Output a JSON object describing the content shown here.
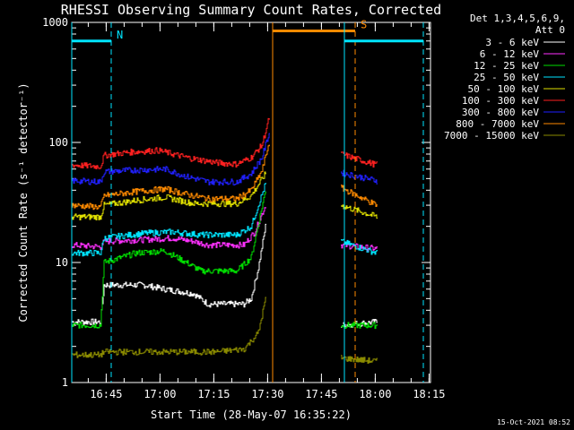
{
  "chart_data": {
    "type": "line",
    "title": "RHESSI Observing Summary Count Rates, Corrected",
    "xlabel": "Start Time (28-May-07 16:35:22)",
    "ylabel": "Corrected Count Rate (s⁻¹ detector⁻¹)",
    "yscale": "log",
    "ylim": [
      1,
      1000
    ],
    "xlim_minutes_after_start": [
      0,
      100
    ],
    "x_tick_labels": [
      "16:45",
      "17:00",
      "17:15",
      "17:30",
      "17:45",
      "18:00",
      "18:15"
    ],
    "x_tick_minutes": [
      9.6,
      24.6,
      39.6,
      54.6,
      69.6,
      84.6,
      99.6
    ],
    "y_tick_labels": [
      "1",
      "10",
      "100",
      "1000"
    ],
    "y_tick_values": [
      1,
      10,
      100,
      1000
    ],
    "legend_header": [
      "Det 1,3,4,5,6,9,",
      "Att 0"
    ],
    "legend_placement": "right",
    "series": [
      {
        "name": "3 - 6 keV",
        "color": "#ffffff",
        "segments": [
          [
            [
              0,
              3.2
            ],
            [
              8,
              3.2
            ],
            [
              9,
              6.5
            ],
            [
              20,
              6.5
            ],
            [
              26,
              6.0
            ],
            [
              34,
              5.5
            ],
            [
              38,
              4.5
            ],
            [
              48,
              4.5
            ],
            [
              50,
              5
            ],
            [
              52,
              9
            ],
            [
              54,
              20
            ]
          ],
          [
            [
              75,
              3
            ],
            [
              85,
              3.2
            ]
          ]
        ]
      },
      {
        "name": "6 - 12 keV",
        "color": "#ff30ff",
        "segments": [
          [
            [
              0,
              14
            ],
            [
              8,
              13.5
            ],
            [
              9,
              15
            ],
            [
              20,
              15.5
            ],
            [
              28,
              16
            ],
            [
              34,
              15
            ],
            [
              38,
              14
            ],
            [
              44,
              14
            ],
            [
              48,
              14
            ],
            [
              51,
              18
            ],
            [
              54,
              30
            ]
          ],
          [
            [
              75,
              14
            ],
            [
              85,
              13
            ]
          ]
        ]
      },
      {
        "name": "12 - 25 keV",
        "color": "#00dd00",
        "segments": [
          [
            [
              0,
              3
            ],
            [
              8,
              3
            ],
            [
              9,
              10
            ],
            [
              18,
              12
            ],
            [
              26,
              12.5
            ],
            [
              32,
              10
            ],
            [
              36,
              8.5
            ],
            [
              46,
              8.5
            ],
            [
              50,
              11
            ],
            [
              54,
              40
            ]
          ],
          [
            [
              75,
              3
            ],
            [
              85,
              3
            ]
          ]
        ]
      },
      {
        "name": "25 - 50 keV",
        "color": "#00e5ff",
        "segments": [
          [
            [
              0,
              12
            ],
            [
              8,
              12
            ],
            [
              9,
              16
            ],
            [
              20,
              17.5
            ],
            [
              28,
              18
            ],
            [
              36,
              17
            ],
            [
              46,
              17
            ],
            [
              50,
              20
            ],
            [
              54,
              45
            ]
          ],
          [
            [
              75,
              15
            ],
            [
              85,
              12
            ]
          ]
        ]
      },
      {
        "name": "50 - 100 keV",
        "color": "#e0e000",
        "segments": [
          [
            [
              0,
              24
            ],
            [
              8,
              24
            ],
            [
              9,
              30
            ],
            [
              18,
              33
            ],
            [
              26,
              35
            ],
            [
              34,
              31
            ],
            [
              46,
              31
            ],
            [
              50,
              36
            ],
            [
              54,
              55
            ]
          ],
          [
            [
              75,
              30
            ],
            [
              85,
              24
            ]
          ]
        ]
      },
      {
        "name": "100 - 300 keV",
        "color": "#ff2020",
        "segments": [
          [
            [
              0,
              65
            ],
            [
              8,
              63
            ],
            [
              9,
              78
            ],
            [
              16,
              83
            ],
            [
              24,
              86
            ],
            [
              32,
              75
            ],
            [
              40,
              68
            ],
            [
              46,
              66
            ],
            [
              50,
              75
            ],
            [
              53,
              95
            ],
            [
              55,
              160
            ]
          ],
          [
            [
              75,
              80
            ],
            [
              80,
              72
            ],
            [
              85,
              65
            ]
          ]
        ]
      },
      {
        "name": "300 - 800 keV",
        "color": "#2020ff",
        "segments": [
          [
            [
              0,
              48
            ],
            [
              8,
              47
            ],
            [
              9,
              57
            ],
            [
              18,
              59
            ],
            [
              26,
              60
            ],
            [
              32,
              52
            ],
            [
              38,
              47
            ],
            [
              46,
              47
            ],
            [
              50,
              55
            ],
            [
              53,
              75
            ],
            [
              55,
              120
            ]
          ],
          [
            [
              75,
              56
            ],
            [
              85,
              48
            ]
          ]
        ]
      },
      {
        "name": "800 - 7000 keV",
        "color": "#ff8a00",
        "segments": [
          [
            [
              0,
              30
            ],
            [
              8,
              29
            ],
            [
              9,
              36
            ],
            [
              18,
              39
            ],
            [
              26,
              41
            ],
            [
              32,
              37
            ],
            [
              38,
              34
            ],
            [
              46,
              34
            ],
            [
              50,
              40
            ],
            [
              53,
              58
            ],
            [
              55,
              100
            ]
          ],
          [
            [
              75,
              42
            ],
            [
              85,
              30
            ]
          ]
        ]
      },
      {
        "name": "7000 - 15000 keV",
        "color": "#8a8a00",
        "segments": [
          [
            [
              0,
              1.7
            ],
            [
              8,
              1.7
            ],
            [
              9,
              1.8
            ],
            [
              40,
              1.8
            ],
            [
              48,
              1.9
            ],
            [
              52,
              2.6
            ],
            [
              54,
              5
            ]
          ],
          [
            [
              75,
              1.6
            ],
            [
              85,
              1.5
            ]
          ]
        ]
      }
    ],
    "annotations": [
      {
        "label": "N",
        "kind": "night",
        "color": "#00e5ff",
        "start": 0,
        "end": 11,
        "level": 700
      },
      {
        "label": "S",
        "kind": "saa",
        "color": "#ff8a00",
        "start": 56,
        "end": 79,
        "level": 850
      },
      {
        "label": "",
        "kind": "night",
        "color": "#00e5ff",
        "start": 76,
        "end": 98,
        "level": 700
      }
    ],
    "gaps_minutes": [
      [
        56,
        75
      ]
    ],
    "grid": false
  },
  "footer": {
    "timestamp": "15-Oct-2021 08:52"
  }
}
